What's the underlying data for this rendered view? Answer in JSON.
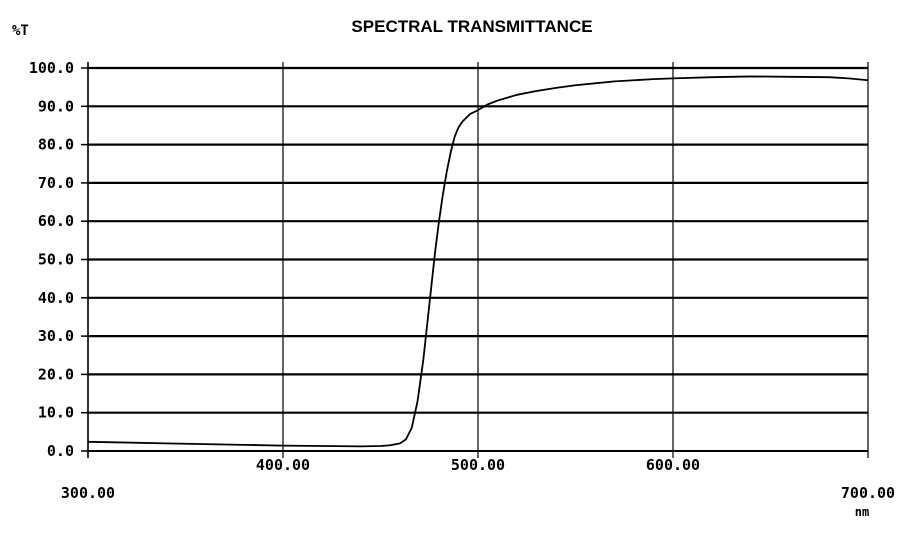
{
  "chart_data": {
    "type": "line",
    "title": "SPECTRAL TRANSMITTANCE",
    "ylabel": "%T",
    "xlabel": "nm",
    "xlim": [
      300,
      700
    ],
    "ylim": [
      0,
      100
    ],
    "x_ticks": [
      300,
      400,
      500,
      600,
      700
    ],
    "x_tick_labels": [
      "300.00",
      "400.00",
      "500.00",
      "600.00",
      "700.00"
    ],
    "y_ticks": [
      0,
      10,
      20,
      30,
      40,
      50,
      60,
      70,
      80,
      90,
      100
    ],
    "y_tick_labels": [
      "0.0",
      "10.0",
      "20.0",
      "30.0",
      "40.0",
      "50.0",
      "60.0",
      "70.0",
      "80.0",
      "90.0",
      "100.0"
    ],
    "grid": true,
    "line_color": "#000000",
    "series": [
      {
        "x": [
          300,
          320,
          340,
          360,
          380,
          400,
          420,
          440,
          450,
          455,
          460,
          463,
          466,
          469,
          472,
          475,
          478,
          480,
          482,
          484,
          486,
          488,
          490,
          492,
          494,
          496,
          498,
          500,
          505,
          510,
          520,
          530,
          540,
          550,
          560,
          570,
          580,
          590,
          600,
          620,
          640,
          660,
          680,
          690,
          700
        ],
        "y": [
          2.4,
          2.2,
          2.0,
          1.8,
          1.6,
          1.4,
          1.3,
          1.2,
          1.3,
          1.5,
          2.0,
          3.0,
          6.0,
          13.0,
          24.0,
          38.0,
          52.0,
          60.0,
          67.0,
          73.0,
          78.0,
          82.0,
          84.5,
          86.0,
          87.0,
          88.0,
          88.5,
          89.0,
          90.5,
          91.5,
          93.0,
          94.0,
          94.8,
          95.5,
          96.0,
          96.5,
          96.8,
          97.1,
          97.3,
          97.6,
          97.8,
          97.7,
          97.6,
          97.3,
          96.8
        ]
      }
    ]
  }
}
